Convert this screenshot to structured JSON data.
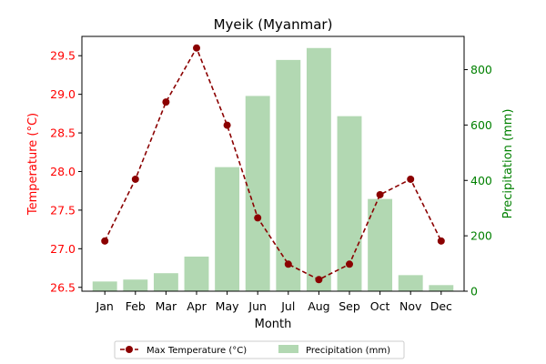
{
  "chart_data": {
    "type": "bar+line",
    "title": "Myeik (Myanmar)",
    "xlabel": "Month",
    "categories": [
      "Jan",
      "Feb",
      "Mar",
      "Apr",
      "May",
      "Jun",
      "Jul",
      "Aug",
      "Sep",
      "Oct",
      "Nov",
      "Dec"
    ],
    "series": [
      {
        "name": "Max Temperature (°C)",
        "type": "line",
        "axis": "left",
        "color": "#8b0000",
        "values": [
          27.1,
          27.9,
          28.9,
          29.6,
          28.6,
          27.4,
          26.8,
          26.6,
          26.8,
          27.7,
          27.9,
          27.1
        ]
      },
      {
        "name": "Precipitation (mm)",
        "type": "bar",
        "axis": "right",
        "color": "#b2d8b2",
        "values": [
          35,
          42,
          65,
          125,
          448,
          705,
          835,
          878,
          632,
          333,
          58,
          22
        ]
      }
    ],
    "y_left": {
      "label": "Temperature (°C)",
      "color": "#ff0000",
      "ylim": [
        26.45,
        29.75
      ],
      "ticks": [
        26.5,
        27.0,
        27.5,
        28.0,
        28.5,
        29.0,
        29.5
      ],
      "tick_labels": [
        "26.5",
        "27.0",
        "27.5",
        "28.0",
        "28.5",
        "29.0",
        "29.5"
      ]
    },
    "y_right": {
      "label": "Precipitation (mm)",
      "color": "#008000",
      "ylim": [
        0,
        920
      ],
      "ticks": [
        0,
        200,
        400,
        600,
        800
      ],
      "tick_labels": [
        "0",
        "200",
        "400",
        "600",
        "800"
      ]
    },
    "grid": false,
    "legend_position": "bottom-center"
  }
}
